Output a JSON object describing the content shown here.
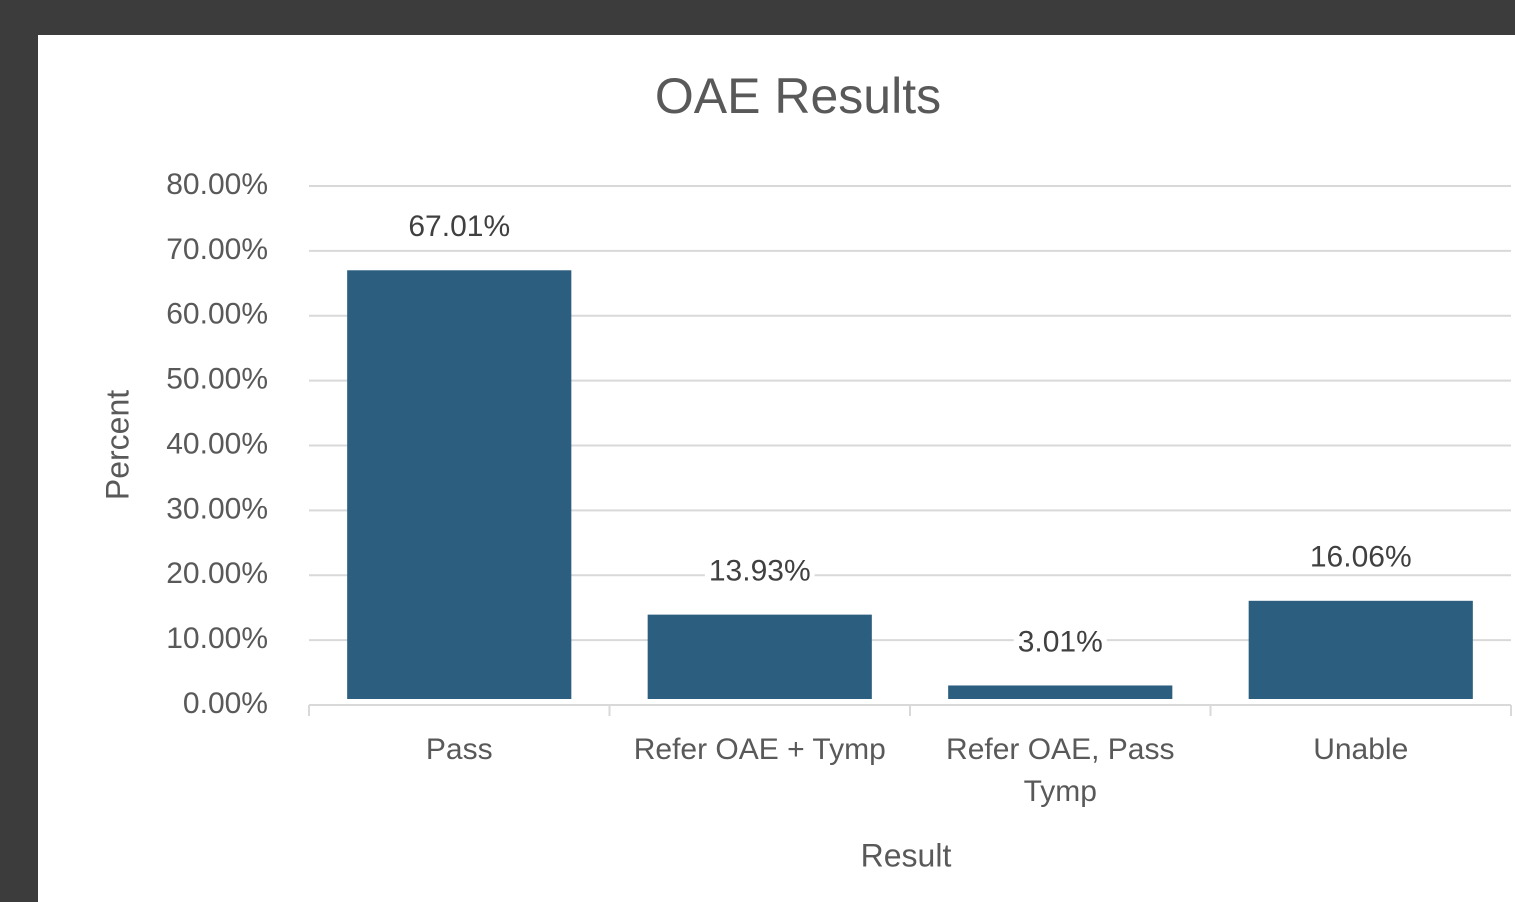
{
  "chart_data": {
    "type": "bar",
    "title": "OAE Results",
    "x_label": "Result",
    "y_label": "Percent",
    "categories": [
      "Pass",
      "Refer OAE + Tymp",
      "Refer OAE, Pass Tymp",
      "Unable"
    ],
    "values": [
      67.01,
      13.93,
      3.01,
      16.06
    ],
    "value_labels": [
      "67.01%",
      "13.93%",
      "3.01%",
      "16.06%"
    ],
    "color": "#2c5f7f",
    "ylim": [
      0,
      80
    ],
    "yticks": [
      {
        "value": 0,
        "label": "0.00%"
      },
      {
        "value": 10,
        "label": "10.00%"
      },
      {
        "value": 20,
        "label": "20.00%"
      },
      {
        "value": 30,
        "label": "30.00%"
      },
      {
        "value": 40,
        "label": "40.00%"
      },
      {
        "value": 50,
        "label": "50.00%"
      },
      {
        "value": 60,
        "label": "60.00%"
      },
      {
        "value": 70,
        "label": "70.00%"
      },
      {
        "value": 80,
        "label": "80.00%"
      }
    ],
    "grid": true
  }
}
